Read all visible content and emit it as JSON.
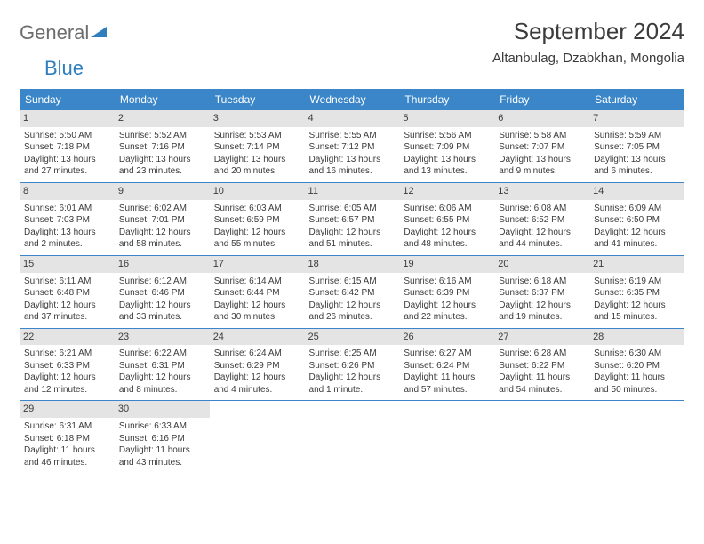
{
  "logo": {
    "text1": "General",
    "text2": "Blue"
  },
  "title": "September 2024",
  "location": "Altanbulag, Dzabkhan, Mongolia",
  "colors": {
    "header_bg": "#3a86c8",
    "header_text": "#ffffff",
    "daynum_bg": "#e4e4e4",
    "text": "#3b3b3b",
    "rule": "#3a86c8",
    "logo_gray": "#6d6d6d",
    "logo_blue": "#2f7fbf"
  },
  "weekdays": [
    "Sunday",
    "Monday",
    "Tuesday",
    "Wednesday",
    "Thursday",
    "Friday",
    "Saturday"
  ],
  "weeks": [
    [
      {
        "day": "1",
        "sunrise": "Sunrise: 5:50 AM",
        "sunset": "Sunset: 7:18 PM",
        "daylight": "Daylight: 13 hours and 27 minutes."
      },
      {
        "day": "2",
        "sunrise": "Sunrise: 5:52 AM",
        "sunset": "Sunset: 7:16 PM",
        "daylight": "Daylight: 13 hours and 23 minutes."
      },
      {
        "day": "3",
        "sunrise": "Sunrise: 5:53 AM",
        "sunset": "Sunset: 7:14 PM",
        "daylight": "Daylight: 13 hours and 20 minutes."
      },
      {
        "day": "4",
        "sunrise": "Sunrise: 5:55 AM",
        "sunset": "Sunset: 7:12 PM",
        "daylight": "Daylight: 13 hours and 16 minutes."
      },
      {
        "day": "5",
        "sunrise": "Sunrise: 5:56 AM",
        "sunset": "Sunset: 7:09 PM",
        "daylight": "Daylight: 13 hours and 13 minutes."
      },
      {
        "day": "6",
        "sunrise": "Sunrise: 5:58 AM",
        "sunset": "Sunset: 7:07 PM",
        "daylight": "Daylight: 13 hours and 9 minutes."
      },
      {
        "day": "7",
        "sunrise": "Sunrise: 5:59 AM",
        "sunset": "Sunset: 7:05 PM",
        "daylight": "Daylight: 13 hours and 6 minutes."
      }
    ],
    [
      {
        "day": "8",
        "sunrise": "Sunrise: 6:01 AM",
        "sunset": "Sunset: 7:03 PM",
        "daylight": "Daylight: 13 hours and 2 minutes."
      },
      {
        "day": "9",
        "sunrise": "Sunrise: 6:02 AM",
        "sunset": "Sunset: 7:01 PM",
        "daylight": "Daylight: 12 hours and 58 minutes."
      },
      {
        "day": "10",
        "sunrise": "Sunrise: 6:03 AM",
        "sunset": "Sunset: 6:59 PM",
        "daylight": "Daylight: 12 hours and 55 minutes."
      },
      {
        "day": "11",
        "sunrise": "Sunrise: 6:05 AM",
        "sunset": "Sunset: 6:57 PM",
        "daylight": "Daylight: 12 hours and 51 minutes."
      },
      {
        "day": "12",
        "sunrise": "Sunrise: 6:06 AM",
        "sunset": "Sunset: 6:55 PM",
        "daylight": "Daylight: 12 hours and 48 minutes."
      },
      {
        "day": "13",
        "sunrise": "Sunrise: 6:08 AM",
        "sunset": "Sunset: 6:52 PM",
        "daylight": "Daylight: 12 hours and 44 minutes."
      },
      {
        "day": "14",
        "sunrise": "Sunrise: 6:09 AM",
        "sunset": "Sunset: 6:50 PM",
        "daylight": "Daylight: 12 hours and 41 minutes."
      }
    ],
    [
      {
        "day": "15",
        "sunrise": "Sunrise: 6:11 AM",
        "sunset": "Sunset: 6:48 PM",
        "daylight": "Daylight: 12 hours and 37 minutes."
      },
      {
        "day": "16",
        "sunrise": "Sunrise: 6:12 AM",
        "sunset": "Sunset: 6:46 PM",
        "daylight": "Daylight: 12 hours and 33 minutes."
      },
      {
        "day": "17",
        "sunrise": "Sunrise: 6:14 AM",
        "sunset": "Sunset: 6:44 PM",
        "daylight": "Daylight: 12 hours and 30 minutes."
      },
      {
        "day": "18",
        "sunrise": "Sunrise: 6:15 AM",
        "sunset": "Sunset: 6:42 PM",
        "daylight": "Daylight: 12 hours and 26 minutes."
      },
      {
        "day": "19",
        "sunrise": "Sunrise: 6:16 AM",
        "sunset": "Sunset: 6:39 PM",
        "daylight": "Daylight: 12 hours and 22 minutes."
      },
      {
        "day": "20",
        "sunrise": "Sunrise: 6:18 AM",
        "sunset": "Sunset: 6:37 PM",
        "daylight": "Daylight: 12 hours and 19 minutes."
      },
      {
        "day": "21",
        "sunrise": "Sunrise: 6:19 AM",
        "sunset": "Sunset: 6:35 PM",
        "daylight": "Daylight: 12 hours and 15 minutes."
      }
    ],
    [
      {
        "day": "22",
        "sunrise": "Sunrise: 6:21 AM",
        "sunset": "Sunset: 6:33 PM",
        "daylight": "Daylight: 12 hours and 12 minutes."
      },
      {
        "day": "23",
        "sunrise": "Sunrise: 6:22 AM",
        "sunset": "Sunset: 6:31 PM",
        "daylight": "Daylight: 12 hours and 8 minutes."
      },
      {
        "day": "24",
        "sunrise": "Sunrise: 6:24 AM",
        "sunset": "Sunset: 6:29 PM",
        "daylight": "Daylight: 12 hours and 4 minutes."
      },
      {
        "day": "25",
        "sunrise": "Sunrise: 6:25 AM",
        "sunset": "Sunset: 6:26 PM",
        "daylight": "Daylight: 12 hours and 1 minute."
      },
      {
        "day": "26",
        "sunrise": "Sunrise: 6:27 AM",
        "sunset": "Sunset: 6:24 PM",
        "daylight": "Daylight: 11 hours and 57 minutes."
      },
      {
        "day": "27",
        "sunrise": "Sunrise: 6:28 AM",
        "sunset": "Sunset: 6:22 PM",
        "daylight": "Daylight: 11 hours and 54 minutes."
      },
      {
        "day": "28",
        "sunrise": "Sunrise: 6:30 AM",
        "sunset": "Sunset: 6:20 PM",
        "daylight": "Daylight: 11 hours and 50 minutes."
      }
    ],
    [
      {
        "day": "29",
        "sunrise": "Sunrise: 6:31 AM",
        "sunset": "Sunset: 6:18 PM",
        "daylight": "Daylight: 11 hours and 46 minutes."
      },
      {
        "day": "30",
        "sunrise": "Sunrise: 6:33 AM",
        "sunset": "Sunset: 6:16 PM",
        "daylight": "Daylight: 11 hours and 43 minutes."
      },
      {
        "day": "",
        "sunrise": "",
        "sunset": "",
        "daylight": ""
      },
      {
        "day": "",
        "sunrise": "",
        "sunset": "",
        "daylight": ""
      },
      {
        "day": "",
        "sunrise": "",
        "sunset": "",
        "daylight": ""
      },
      {
        "day": "",
        "sunrise": "",
        "sunset": "",
        "daylight": ""
      },
      {
        "day": "",
        "sunrise": "",
        "sunset": "",
        "daylight": ""
      }
    ]
  ]
}
